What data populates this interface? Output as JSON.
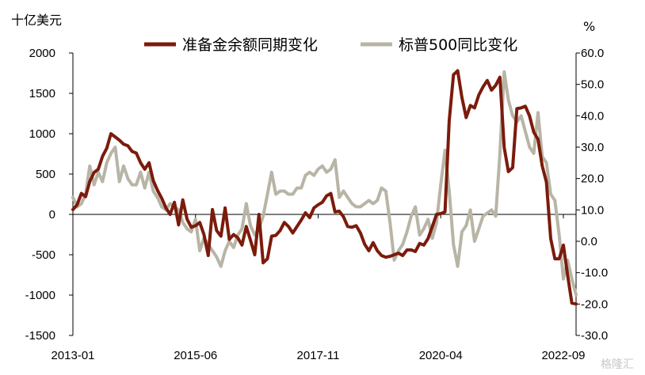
{
  "chart_data": {
    "type": "line",
    "left_axis_unit": "十亿美元",
    "right_axis_unit": "%",
    "left_ylim": [
      -1500,
      2000
    ],
    "left_ticks": [
      "2000",
      "1500",
      "1000",
      "500",
      "0",
      "-500",
      "-1000",
      "-1500"
    ],
    "left_tick_values": [
      2000,
      1500,
      1000,
      500,
      0,
      -500,
      -1000,
      -1500
    ],
    "right_ylim": [
      -30,
      60
    ],
    "right_ticks": [
      "60.0",
      "50.0",
      "40.0",
      "30.0",
      "20.0",
      "10.0",
      "0.0",
      "-10.0",
      "-20.0",
      "-30.0"
    ],
    "right_tick_values": [
      60,
      50,
      40,
      30,
      20,
      10,
      0,
      -10,
      -20,
      -30
    ],
    "x_ticks": [
      "2013-01",
      "2015-06",
      "2017-11",
      "2020-04",
      "2022-09"
    ],
    "x_tick_months": [
      0,
      29,
      58,
      87,
      116
    ],
    "legend_position": "top",
    "grid": false,
    "watermark": "格隆汇",
    "series": [
      {
        "name": "准备金余额同期变化",
        "axis": "left",
        "color": "#7b1b0c",
        "points": [
          [
            0,
            60
          ],
          [
            1,
            120
          ],
          [
            2,
            260
          ],
          [
            3,
            220
          ],
          [
            4,
            410
          ],
          [
            5,
            520
          ],
          [
            6,
            560
          ],
          [
            7,
            720
          ],
          [
            8,
            820
          ],
          [
            9,
            1000
          ],
          [
            10,
            960
          ],
          [
            11,
            920
          ],
          [
            12,
            870
          ],
          [
            13,
            850
          ],
          [
            14,
            780
          ],
          [
            15,
            760
          ],
          [
            16,
            640
          ],
          [
            17,
            560
          ],
          [
            18,
            640
          ],
          [
            19,
            420
          ],
          [
            20,
            300
          ],
          [
            21,
            200
          ],
          [
            22,
            80
          ],
          [
            23,
            0
          ],
          [
            24,
            150
          ],
          [
            25,
            -130
          ],
          [
            26,
            180
          ],
          [
            27,
            -60
          ],
          [
            28,
            -160
          ],
          [
            29,
            -140
          ],
          [
            30,
            -100
          ],
          [
            31,
            -250
          ],
          [
            32,
            -510
          ],
          [
            33,
            60
          ],
          [
            34,
            -200
          ],
          [
            35,
            -270
          ],
          [
            36,
            80
          ],
          [
            37,
            -310
          ],
          [
            38,
            -250
          ],
          [
            39,
            -290
          ],
          [
            40,
            -380
          ],
          [
            41,
            -150
          ],
          [
            42,
            -320
          ],
          [
            43,
            -500
          ],
          [
            44,
            0
          ],
          [
            45,
            -600
          ],
          [
            46,
            -550
          ],
          [
            47,
            -270
          ],
          [
            48,
            -260
          ],
          [
            49,
            -200
          ],
          [
            50,
            -100
          ],
          [
            51,
            -150
          ],
          [
            52,
            -230
          ],
          [
            53,
            -150
          ],
          [
            54,
            -70
          ],
          [
            55,
            20
          ],
          [
            56,
            -40
          ],
          [
            57,
            80
          ],
          [
            58,
            120
          ],
          [
            59,
            150
          ],
          [
            60,
            230
          ],
          [
            61,
            260
          ],
          [
            62,
            30
          ],
          [
            63,
            40
          ],
          [
            64,
            -30
          ],
          [
            65,
            -150
          ],
          [
            66,
            -160
          ],
          [
            67,
            -140
          ],
          [
            68,
            -230
          ],
          [
            69,
            -370
          ],
          [
            70,
            -450
          ],
          [
            71,
            -350
          ],
          [
            72,
            -450
          ],
          [
            73,
            -510
          ],
          [
            74,
            -530
          ],
          [
            75,
            -520
          ],
          [
            76,
            -500
          ],
          [
            77,
            -480
          ],
          [
            78,
            -510
          ],
          [
            79,
            -440
          ],
          [
            80,
            -440
          ],
          [
            81,
            -460
          ],
          [
            82,
            -360
          ],
          [
            83,
            -380
          ],
          [
            84,
            -300
          ],
          [
            85,
            -150
          ],
          [
            86,
            0
          ],
          [
            87,
            10
          ],
          [
            88,
            30
          ],
          [
            89,
            1160
          ],
          [
            90,
            1730
          ],
          [
            91,
            1780
          ],
          [
            92,
            1450
          ],
          [
            93,
            1200
          ],
          [
            94,
            1350
          ],
          [
            95,
            1320
          ],
          [
            96,
            1480
          ],
          [
            97,
            1580
          ],
          [
            98,
            1660
          ],
          [
            99,
            1540
          ],
          [
            100,
            1600
          ],
          [
            101,
            1700
          ],
          [
            102,
            830
          ],
          [
            103,
            530
          ],
          [
            104,
            580
          ],
          [
            105,
            1310
          ],
          [
            106,
            1320
          ],
          [
            107,
            1340
          ],
          [
            108,
            1220
          ],
          [
            109,
            1020
          ],
          [
            110,
            930
          ],
          [
            111,
            600
          ],
          [
            112,
            400
          ],
          [
            113,
            -300
          ],
          [
            114,
            -550
          ],
          [
            115,
            -550
          ],
          [
            116,
            -380
          ],
          [
            117,
            -750
          ],
          [
            118,
            -1100
          ],
          [
            119,
            -1110
          ]
        ]
      },
      {
        "name": "标普500同比变化",
        "axis": "right",
        "color": "#b8b5a6",
        "points": [
          [
            0,
            14
          ],
          [
            1,
            11
          ],
          [
            2,
            12
          ],
          [
            3,
            15
          ],
          [
            4,
            24
          ],
          [
            5,
            18
          ],
          [
            6,
            22
          ],
          [
            7,
            19
          ],
          [
            8,
            25
          ],
          [
            9,
            28
          ],
          [
            10,
            30
          ],
          [
            11,
            19
          ],
          [
            12,
            24
          ],
          [
            13,
            20
          ],
          [
            14,
            18
          ],
          [
            15,
            18
          ],
          [
            16,
            22
          ],
          [
            17,
            17
          ],
          [
            18,
            22
          ],
          [
            19,
            16
          ],
          [
            20,
            14
          ],
          [
            21,
            11
          ],
          [
            22,
            10
          ],
          [
            23,
            12
          ],
          [
            24,
            11
          ],
          [
            25,
            10
          ],
          [
            26,
            6
          ],
          [
            27,
            4
          ],
          [
            28,
            3
          ],
          [
            29,
            7
          ],
          [
            30,
            -3
          ],
          [
            31,
            1
          ],
          [
            32,
            -1
          ],
          [
            33,
            -3
          ],
          [
            34,
            -5
          ],
          [
            35,
            -8
          ],
          [
            36,
            -3
          ],
          [
            37,
            0
          ],
          [
            38,
            -2
          ],
          [
            39,
            2
          ],
          [
            40,
            4
          ],
          [
            41,
            12
          ],
          [
            42,
            5
          ],
          [
            43,
            2
          ],
          [
            44,
            4
          ],
          [
            45,
            8
          ],
          [
            46,
            15
          ],
          [
            47,
            22
          ],
          [
            48,
            15
          ],
          [
            49,
            16
          ],
          [
            50,
            16
          ],
          [
            51,
            15
          ],
          [
            52,
            15
          ],
          [
            53,
            17
          ],
          [
            54,
            17
          ],
          [
            55,
            21
          ],
          [
            56,
            22
          ],
          [
            57,
            21
          ],
          [
            58,
            23
          ],
          [
            59,
            24
          ],
          [
            60,
            22
          ],
          [
            61,
            23
          ],
          [
            62,
            26
          ],
          [
            63,
            14
          ],
          [
            64,
            16
          ],
          [
            65,
            14
          ],
          [
            66,
            12
          ],
          [
            67,
            11
          ],
          [
            68,
            11
          ],
          [
            69,
            12
          ],
          [
            70,
            13
          ],
          [
            71,
            12
          ],
          [
            72,
            13
          ],
          [
            73,
            17
          ],
          [
            74,
            16
          ],
          [
            75,
            6
          ],
          [
            76,
            -6
          ],
          [
            77,
            -3
          ],
          [
            78,
            -1
          ],
          [
            79,
            3
          ],
          [
            80,
            8
          ],
          [
            81,
            11
          ],
          [
            82,
            2
          ],
          [
            83,
            4
          ],
          [
            84,
            7
          ],
          [
            85,
            1
          ],
          [
            86,
            6
          ],
          [
            87,
            18
          ],
          [
            88,
            29
          ],
          [
            89,
            16
          ],
          [
            90,
            -1
          ],
          [
            91,
            -8
          ],
          [
            92,
            3
          ],
          [
            93,
            5
          ],
          [
            94,
            10
          ],
          [
            95,
            0
          ],
          [
            96,
            4
          ],
          [
            97,
            8
          ],
          [
            98,
            9
          ],
          [
            99,
            10
          ],
          [
            100,
            8
          ],
          [
            101,
            28
          ],
          [
            102,
            54
          ],
          [
            103,
            45
          ],
          [
            104,
            40
          ],
          [
            105,
            38
          ],
          [
            106,
            40
          ],
          [
            107,
            35
          ],
          [
            108,
            30
          ],
          [
            109,
            28
          ],
          [
            110,
            41
          ],
          [
            111,
            27
          ],
          [
            112,
            25
          ],
          [
            113,
            15
          ],
          [
            114,
            13
          ],
          [
            115,
            2
          ],
          [
            116,
            -12
          ],
          [
            117,
            -6
          ],
          [
            118,
            -12
          ],
          [
            119,
            -17
          ]
        ]
      }
    ]
  }
}
